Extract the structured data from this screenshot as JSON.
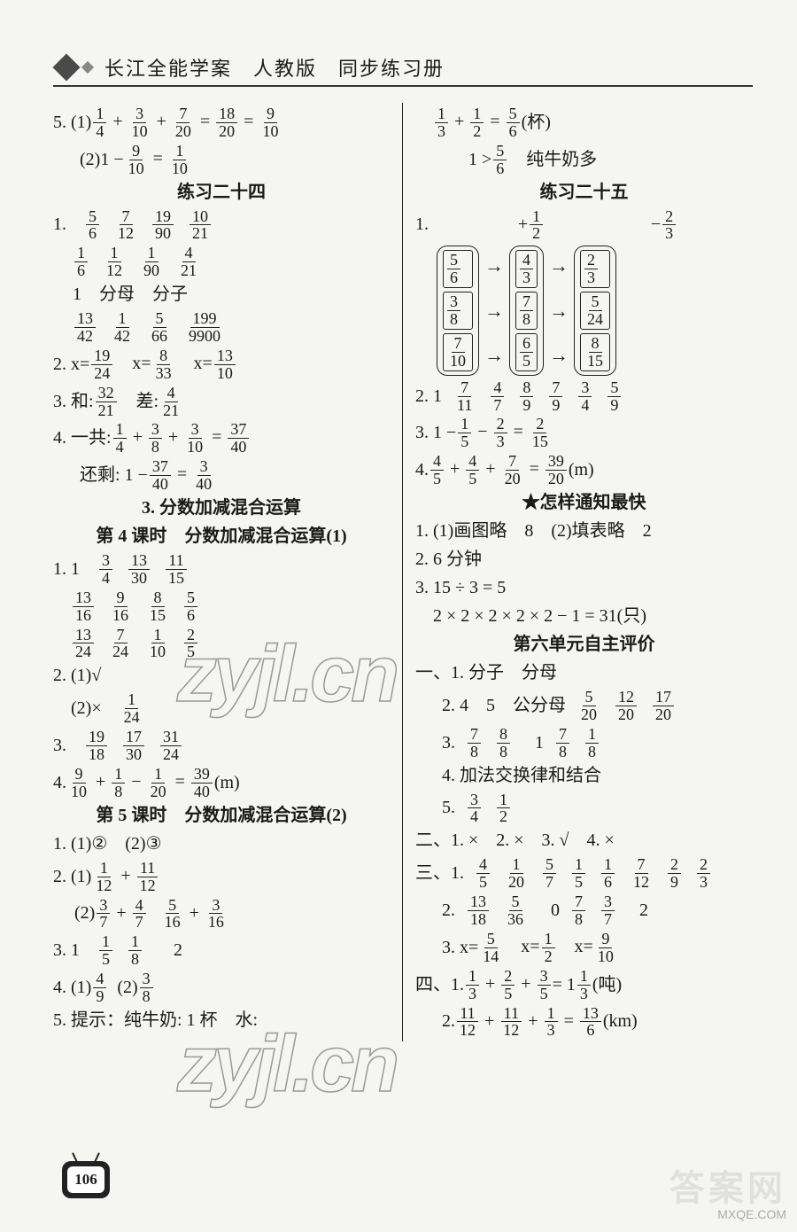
{
  "header": {
    "title": "长江全能学案　人教版　同步练习册"
  },
  "watermark": "zyjl.cn",
  "corner": {
    "line1": "答案网",
    "line2": "MXQE.COM"
  },
  "page_number": "106",
  "left": {
    "l1_pre": "5. (1)",
    "l1_expr": [
      "1",
      "4",
      "+",
      "3",
      "10",
      "+",
      "7",
      "20",
      "=",
      "18",
      "20",
      "=",
      "9",
      "10"
    ],
    "l2_pre": "(2)1 −",
    "l2_expr": [
      "9",
      "10",
      "=",
      "1",
      "10"
    ],
    "h24": "练习二十四",
    "l3_pre": "1.",
    "l3": [
      [
        "5",
        "6"
      ],
      [
        "7",
        "12"
      ],
      [
        "19",
        "90"
      ],
      [
        "10",
        "21"
      ]
    ],
    "l4": [
      [
        "1",
        "6"
      ],
      [
        "1",
        "12"
      ],
      [
        "1",
        "90"
      ],
      [
        "4",
        "21"
      ]
    ],
    "l5": "1　分母　分子",
    "l6": [
      [
        "13",
        "42"
      ],
      [
        "1",
        "42"
      ],
      [
        "5",
        "66"
      ],
      [
        "199",
        "9900"
      ]
    ],
    "l7_pre": "2. x=",
    "l7": [
      [
        "19",
        "24"
      ],
      "　x=",
      [
        "8",
        "33"
      ],
      "　x=",
      [
        "13",
        "10"
      ]
    ],
    "l8_pre": "3. 和:",
    "l8a": [
      "32",
      "21"
    ],
    "l8_mid": "　差:",
    "l8b": [
      "4",
      "21"
    ],
    "l9_pre": "4. 一共:",
    "l9": [
      "1",
      "4",
      "+",
      "3",
      "8",
      "+",
      "3",
      "10",
      "=",
      "37",
      "40"
    ],
    "l10_pre": "还剩: 1 −",
    "l10": [
      "37",
      "40",
      "=",
      "3",
      "40"
    ],
    "h3": "3. 分数加减混合运算",
    "h4": "第 4 课时　分数加减混合运算(1)",
    "l11_pre": "1. 1",
    "l11": [
      [
        "3",
        "4"
      ],
      [
        "13",
        "30"
      ],
      [
        "11",
        "15"
      ]
    ],
    "l12": [
      [
        "13",
        "16"
      ],
      [
        "9",
        "16"
      ],
      [
        "8",
        "15"
      ],
      [
        "5",
        "6"
      ]
    ],
    "l13": [
      [
        "13",
        "24"
      ],
      [
        "7",
        "24"
      ],
      [
        "1",
        "10"
      ],
      [
        "2",
        "5"
      ]
    ],
    "l14": "2. (1)√",
    "l15_pre": "(2)×　",
    "l15": [
      "1",
      "24"
    ],
    "l16_pre": "3.",
    "l16": [
      [
        "19",
        "18"
      ],
      [
        "17",
        "30"
      ],
      [
        "31",
        "24"
      ]
    ],
    "l17_pre": "4.",
    "l17": [
      "9",
      "10",
      "+",
      "1",
      "8",
      "−",
      "1",
      "20",
      "=",
      "39",
      "40"
    ],
    "l17_suf": "(m)",
    "h5": "第 5 课时　分数加减混合运算(2)",
    "l18": "1. (1)②　(2)③",
    "l19_pre": "2. (1)",
    "l19": [
      "1",
      "12",
      "+",
      "11",
      "12"
    ],
    "l20_pre": "(2)",
    "l20a": [
      "3",
      "7",
      "+",
      "4",
      "7"
    ],
    "l20b": [
      "5",
      "16",
      "+",
      "3",
      "16"
    ],
    "l21_pre": "3. 1",
    "l21": [
      [
        "1",
        "5"
      ],
      [
        "1",
        "8"
      ]
    ],
    "l21_suf": "2",
    "l22_pre": "4. (1)",
    "l22a": [
      "4",
      "9"
    ],
    "l22_mid": "(2)",
    "l22b": [
      "3",
      "8"
    ],
    "l23": "5. 提示：纯牛奶: 1 杯　水:"
  },
  "right": {
    "r1": [
      "1",
      "3",
      "+",
      "1",
      "2",
      "=",
      "5",
      "6"
    ],
    "r1_suf": "(杯)",
    "r2_pre": "1 >",
    "r2": [
      "5",
      "6"
    ],
    "r2_suf": "　纯牛奶多",
    "h25": "练习二十五",
    "diag_pre": "1.",
    "diag_ops": [
      "+",
      "1",
      "2",
      "−",
      "2",
      "3"
    ],
    "diag_col1": [
      [
        "5",
        "6"
      ],
      [
        "3",
        "8"
      ],
      [
        "7",
        "10"
      ]
    ],
    "diag_col2": [
      [
        "4",
        "3"
      ],
      [
        "7",
        "8"
      ],
      [
        "6",
        "5"
      ]
    ],
    "diag_col3": [
      [
        "2",
        "3"
      ],
      [
        "5",
        "24"
      ],
      [
        "8",
        "15"
      ]
    ],
    "r3_pre": "2. 1",
    "r3": [
      [
        "7",
        "11"
      ],
      [
        "4",
        "7"
      ],
      [
        "8",
        "9"
      ],
      [
        "7",
        "9"
      ],
      [
        "3",
        "4"
      ],
      [
        "5",
        "9"
      ]
    ],
    "r4_pre": "3. 1 −",
    "r4": [
      "1",
      "5",
      "−",
      "2",
      "3",
      "=",
      "2",
      "15"
    ],
    "r5_pre": "4.",
    "r5": [
      "4",
      "5",
      "+",
      "4",
      "5",
      "+",
      "7",
      "20",
      "=",
      "39",
      "20"
    ],
    "r5_suf": "(m)",
    "hstar": "★怎样通知最快",
    "r6": "1. (1)画图略　8　(2)填表略　2",
    "r7": "2. 6 分钟",
    "r8": "3. 15 ÷ 3 = 5",
    "r9": "　2 × 2 × 2 × 2 × 2 − 1 = 31(只)",
    "h6": "第六单元自主评价",
    "r10": "一、1. 分子　分母",
    "r11_pre": "2. 4　5　公分母",
    "r11": [
      [
        "5",
        "20"
      ],
      [
        "12",
        "20"
      ],
      [
        "17",
        "20"
      ]
    ],
    "r12_pre": "3.",
    "r12": [
      [
        "7",
        "8"
      ],
      [
        "8",
        "8"
      ]
    ],
    "r12_mid": "1",
    "r12b": [
      [
        "7",
        "8"
      ],
      [
        "1",
        "8"
      ]
    ],
    "r13": "4. 加法交换律和结合",
    "r14_pre": "5.",
    "r14": [
      [
        "3",
        "4"
      ],
      [
        "1",
        "2"
      ]
    ],
    "r15": "二、1. ×　2. ×　3. √　4. ×",
    "r16_pre": "三、1.",
    "r16": [
      [
        "4",
        "5"
      ],
      [
        "1",
        "20"
      ],
      [
        "5",
        "7"
      ],
      [
        "1",
        "5"
      ],
      [
        "1",
        "6"
      ],
      [
        "7",
        "12"
      ],
      [
        "2",
        "9"
      ],
      [
        "2",
        "3"
      ]
    ],
    "r17_pre": "2.",
    "r17": [
      [
        "13",
        "18"
      ],
      [
        "5",
        "36"
      ]
    ],
    "r17_mid": "0",
    "r17b": [
      [
        "7",
        "8"
      ],
      [
        "3",
        "7"
      ]
    ],
    "r17_suf": "2",
    "r18_pre": "3. x=",
    "r18": [
      [
        "5",
        "14"
      ],
      "　x=",
      [
        "1",
        "2"
      ],
      "　x=",
      [
        "9",
        "10"
      ]
    ],
    "r19_pre": "四、1.",
    "r19": [
      "1",
      "3",
      "+",
      "2",
      "5",
      "+",
      "3",
      "5"
    ],
    "r19_mid": " = 1",
    "r19b": [
      "1",
      "3"
    ],
    "r19_suf": "(吨)",
    "r20_pre": "2.",
    "r20": [
      "11",
      "12",
      "+",
      "11",
      "12",
      "+",
      "1",
      "3",
      "=",
      "13",
      "6"
    ],
    "r20_suf": "(km)"
  }
}
